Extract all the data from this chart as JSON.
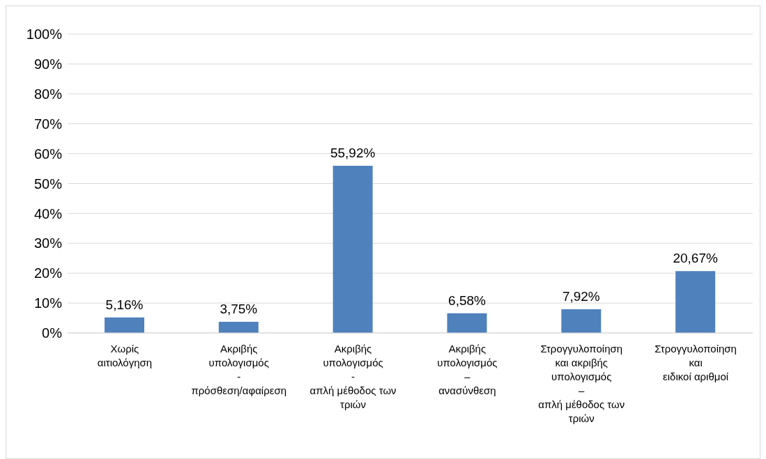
{
  "chart_data": {
    "type": "bar",
    "categories": [
      "Χωρίς\nαιτιολόγηση",
      "Ακριβής\nυπολογισμός\n-\nπρόσθεση/αφαίρεση",
      "Ακριβής\nυπολογισμός\n-\nαπλή μέθοδος των\nτριών",
      "Ακριβής\nυπολογισμός\n–\nανασύνθεση",
      "Στρογγυλοποίηση\nκαι ακριβής\nυπολογισμός\n–\nαπλή μέθοδος των\nτριών",
      "Στρογγυλοποίηση\nκαι\nειδικοί αριθμοί"
    ],
    "values": [
      5.16,
      3.75,
      55.92,
      6.58,
      7.92,
      20.67
    ],
    "value_labels": [
      "5,16%",
      "3,75%",
      "55,92%",
      "6,58%",
      "7,92%",
      "20,67%"
    ],
    "color": "#4f81bd",
    "ylim": [
      0,
      100
    ],
    "yticks": [
      {
        "value": 0,
        "label": "0%"
      },
      {
        "value": 10,
        "label": "10%"
      },
      {
        "value": 20,
        "label": "20%"
      },
      {
        "value": 30,
        "label": "30%"
      },
      {
        "value": 40,
        "label": "40%"
      },
      {
        "value": 50,
        "label": "50%"
      },
      {
        "value": 60,
        "label": "60%"
      },
      {
        "value": 70,
        "label": "70%"
      },
      {
        "value": 80,
        "label": "80%"
      },
      {
        "value": 90,
        "label": "90%"
      },
      {
        "value": 100,
        "label": "100%"
      }
    ],
    "grid": "y"
  }
}
